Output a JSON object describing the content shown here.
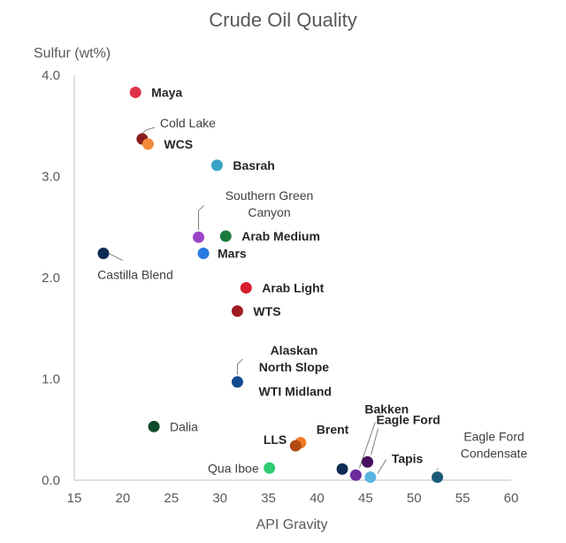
{
  "chart_data": {
    "type": "scatter",
    "title": "Crude Oil Quality",
    "xlabel": "API Gravity",
    "ylabel": "Sulfur (wt%)",
    "xlim": [
      15,
      60
    ],
    "ylim": [
      0,
      4
    ],
    "xticks": [
      "15",
      "20",
      "25",
      "30",
      "35",
      "40",
      "45",
      "50",
      "55",
      "60"
    ],
    "yticks": [
      "0.0",
      "1.0",
      "2.0",
      "3.0",
      "4.0"
    ],
    "grid": false,
    "points": [
      {
        "name": "Maya",
        "x": 21.3,
        "y": 3.83,
        "color": "#e0334a",
        "bold": true
      },
      {
        "name": "Cold Lake",
        "x": 22.0,
        "y": 3.37,
        "color": "#8c1c20",
        "bold": false
      },
      {
        "name": "WCS",
        "x": 22.6,
        "y": 3.32,
        "color": "#f28c3c",
        "bold": true
      },
      {
        "name": "Basrah",
        "x": 29.7,
        "y": 3.11,
        "color": "#3aa3c4",
        "bold": true
      },
      {
        "name": "Southern Green Canyon",
        "x": 27.8,
        "y": 2.4,
        "color": "#9a45c7",
        "bold": false
      },
      {
        "name": "Arab Medium",
        "x": 30.6,
        "y": 2.41,
        "color": "#1a7a3e",
        "bold": true
      },
      {
        "name": "Mars",
        "x": 28.3,
        "y": 2.24,
        "color": "#2a79e0",
        "bold": true
      },
      {
        "name": "Castilla Blend",
        "x": 18.0,
        "y": 2.24,
        "color": "#0f2a55",
        "bold": false
      },
      {
        "name": "Arab Light",
        "x": 32.7,
        "y": 1.9,
        "color": "#d81e2c",
        "bold": true
      },
      {
        "name": "WTS",
        "x": 31.8,
        "y": 1.67,
        "color": "#a01a22",
        "bold": true
      },
      {
        "name": "Alaskan North Slope",
        "x": 31.8,
        "y": 0.97,
        "color": "#124a8f",
        "bold": true
      },
      {
        "name": "Dalia",
        "x": 23.2,
        "y": 0.53,
        "color": "#0f4a2a",
        "bold": false
      },
      {
        "name": "Brent",
        "x": 38.3,
        "y": 0.37,
        "color": "#f07a2a",
        "bold": true
      },
      {
        "name": "LLS",
        "x": 37.8,
        "y": 0.34,
        "color": "#b34a12",
        "bold": true
      },
      {
        "name": "Qua Iboe",
        "x": 35.1,
        "y": 0.12,
        "color": "#2ecc71",
        "bold": false
      },
      {
        "name": "WTI Midland",
        "x": 42.6,
        "y": 0.11,
        "color": "#0f2a55",
        "bold": true
      },
      {
        "name": "Bakken",
        "x": 44.0,
        "y": 0.05,
        "color": "#6a2a9a",
        "bold": true
      },
      {
        "name": "Eagle Ford",
        "x": 45.2,
        "y": 0.18,
        "color": "#4a1060",
        "bold": true
      },
      {
        "name": "Tapis",
        "x": 45.5,
        "y": 0.03,
        "color": "#5ab4e0",
        "bold": true
      },
      {
        "name": "Eagle Ford Condensate",
        "x": 52.4,
        "y": 0.03,
        "color": "#1a5a78",
        "bold": false
      }
    ]
  }
}
